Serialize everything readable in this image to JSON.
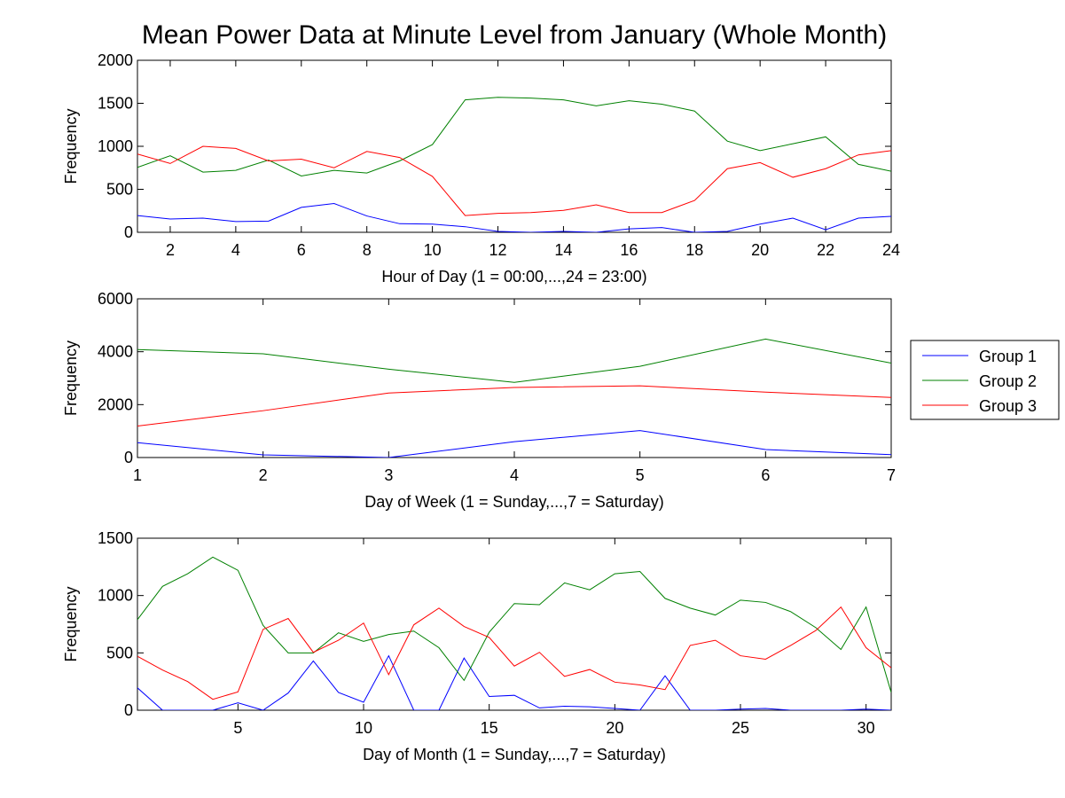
{
  "figure": {
    "title": "Mean Power Data at Minute Level from January (Whole Month)"
  },
  "legend": {
    "entries": [
      "Group 1",
      "Group 2",
      "Group 3"
    ],
    "placement": "right of middle subplot"
  },
  "colors": {
    "Group 1": "#0000ff",
    "Group 2": "#008000",
    "Group 3": "#ff0000"
  },
  "chart_data": [
    {
      "type": "line",
      "title": "Mean Power Data at Minute Level from January (Whole Month)",
      "xlabel": "Hour of Day (1 = 00:00,...,24 = 23:00)",
      "ylabel": "Frequency",
      "xlim": [
        1,
        24
      ],
      "ylim": [
        0,
        2000
      ],
      "xticks": [
        2,
        4,
        6,
        8,
        10,
        12,
        14,
        16,
        18,
        20,
        22,
        24
      ],
      "yticks": [
        0,
        500,
        1000,
        1500,
        2000
      ],
      "grid": false,
      "x": [
        1,
        2,
        3,
        4,
        5,
        6,
        7,
        8,
        9,
        10,
        11,
        12,
        13,
        14,
        15,
        16,
        17,
        18,
        19,
        20,
        21,
        22,
        23,
        24
      ],
      "series": [
        {
          "name": "Group 1",
          "color": "#0000ff",
          "values": [
            195,
            155,
            165,
            125,
            130,
            290,
            335,
            190,
            100,
            95,
            65,
            10,
            0,
            10,
            0,
            40,
            55,
            0,
            10,
            95,
            165,
            30,
            165,
            185
          ]
        },
        {
          "name": "Group 2",
          "color": "#008000",
          "values": [
            755,
            890,
            700,
            720,
            840,
            655,
            720,
            690,
            830,
            1020,
            1540,
            1570,
            1560,
            1540,
            1470,
            1530,
            1490,
            1410,
            1060,
            950,
            1030,
            1110,
            790,
            710
          ]
        },
        {
          "name": "Group 3",
          "color": "#ff0000",
          "values": [
            910,
            800,
            1000,
            975,
            830,
            850,
            750,
            940,
            870,
            650,
            195,
            220,
            230,
            255,
            320,
            230,
            230,
            370,
            740,
            810,
            640,
            740,
            900,
            950
          ]
        }
      ]
    },
    {
      "type": "line",
      "xlabel": "Day of Week (1 = Sunday,...,7 = Saturday)",
      "ylabel": "Frequency",
      "xlim": [
        1,
        7
      ],
      "ylim": [
        0,
        6000
      ],
      "xticks": [
        1,
        2,
        3,
        4,
        5,
        6,
        7
      ],
      "yticks": [
        0,
        2000,
        4000,
        6000
      ],
      "grid": false,
      "x": [
        1,
        2,
        3,
        4,
        5,
        6,
        7
      ],
      "series": [
        {
          "name": "Group 1",
          "color": "#0000ff",
          "values": [
            560,
            100,
            0,
            600,
            1020,
            300,
            110
          ]
        },
        {
          "name": "Group 2",
          "color": "#008000",
          "values": [
            4080,
            3920,
            3340,
            2840,
            3450,
            4480,
            3570
          ]
        },
        {
          "name": "Group 3",
          "color": "#ff0000",
          "values": [
            1190,
            1770,
            2440,
            2650,
            2710,
            2470,
            2270
          ]
        }
      ]
    },
    {
      "type": "line",
      "xlabel": "Day of Month (1 = Sunday,...,7 = Saturday)",
      "ylabel": "Frequency",
      "xlim": [
        1,
        31
      ],
      "ylim": [
        0,
        1500
      ],
      "xticks": [
        5,
        10,
        15,
        20,
        25,
        30
      ],
      "yticks": [
        0,
        500,
        1000,
        1500
      ],
      "grid": false,
      "x": [
        1,
        2,
        3,
        4,
        5,
        6,
        7,
        8,
        9,
        10,
        11,
        12,
        13,
        14,
        15,
        16,
        17,
        18,
        19,
        20,
        21,
        22,
        23,
        24,
        25,
        26,
        27,
        28,
        29,
        30,
        31
      ],
      "series": [
        {
          "name": "Group 1",
          "color": "#0000ff",
          "values": [
            195,
            0,
            0,
            0,
            65,
            0,
            150,
            430,
            155,
            70,
            475,
            0,
            0,
            455,
            120,
            130,
            20,
            35,
            30,
            15,
            0,
            300,
            0,
            0,
            10,
            15,
            0,
            0,
            0,
            10,
            0
          ]
        },
        {
          "name": "Group 2",
          "color": "#008000",
          "values": [
            790,
            1080,
            1190,
            1335,
            1220,
            740,
            500,
            500,
            675,
            600,
            660,
            690,
            545,
            260,
            680,
            930,
            920,
            1110,
            1050,
            1190,
            1210,
            975,
            890,
            830,
            960,
            940,
            860,
            720,
            530,
            900,
            155
          ]
        },
        {
          "name": "Group 3",
          "color": "#ff0000",
          "values": [
            470,
            350,
            250,
            95,
            160,
            705,
            800,
            505,
            610,
            760,
            310,
            745,
            890,
            730,
            635,
            385,
            505,
            295,
            355,
            245,
            220,
            180,
            565,
            610,
            475,
            445,
            565,
            695,
            900,
            545,
            370
          ]
        }
      ]
    }
  ]
}
